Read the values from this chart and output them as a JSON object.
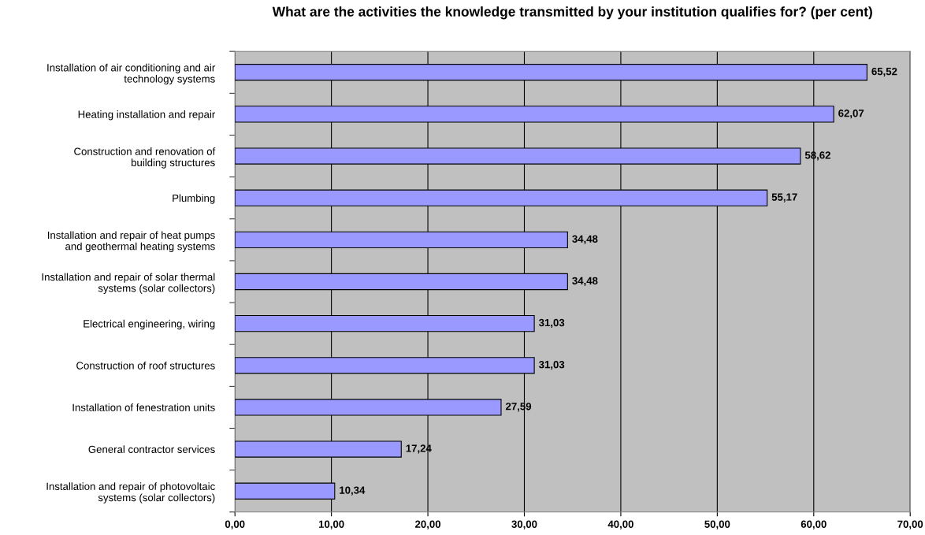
{
  "chart_data": {
    "type": "bar",
    "orientation": "horizontal",
    "title": "What are the activities the knowledge transmitted by your institution qualifies for? (per cent)",
    "categories": [
      "Installation of air conditioning and air\ntechnology systems",
      "Heating installation and repair",
      "Construction and renovation of\nbuilding structures",
      "Plumbing",
      "Installation and repair of heat pumps\nand geothermal heating systems",
      "Installation and repair of solar thermal\nsystems (solar collectors)",
      "Electrical engineering, wiring",
      "Construction of roof structures",
      "Installation of fenestration units",
      "General contractor services",
      "Installation and repair of photovoltaic\nsystems (solar collectors)"
    ],
    "values": [
      65.52,
      62.07,
      58.62,
      55.17,
      34.48,
      34.48,
      31.03,
      31.03,
      27.59,
      17.24,
      10.34
    ],
    "value_labels": [
      "65,52",
      "62,07",
      "58,62",
      "55,17",
      "34,48",
      "34,48",
      "31,03",
      "31,03",
      "27,59",
      "17,24",
      "10,34"
    ],
    "color": "#9999ff",
    "xlim": [
      0,
      70
    ],
    "xticks": [
      {
        "value": 0,
        "label": "0,00"
      },
      {
        "value": 10,
        "label": "10,00"
      },
      {
        "value": 20,
        "label": "20,00"
      },
      {
        "value": 30,
        "label": "30,00"
      },
      {
        "value": 40,
        "label": "40,00"
      },
      {
        "value": 50,
        "label": "50,00"
      },
      {
        "value": 60,
        "label": "60,00"
      },
      {
        "value": 70,
        "label": "70,00"
      }
    ],
    "grid": "x"
  }
}
